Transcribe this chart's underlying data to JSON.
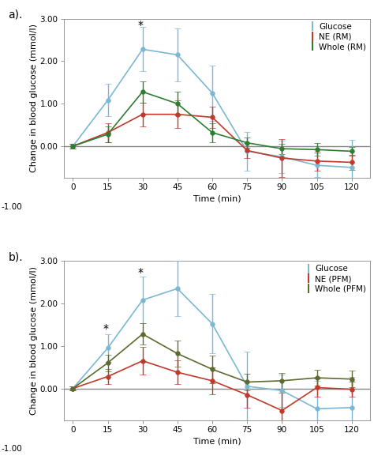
{
  "time": [
    0,
    15,
    30,
    45,
    60,
    75,
    90,
    105,
    120
  ],
  "panel_a": {
    "title": "a).",
    "glucose": {
      "y": [
        0.0,
        1.08,
        2.28,
        2.15,
        1.25,
        -0.12,
        -0.25,
        -0.45,
        -0.5
      ],
      "yerr": [
        0.05,
        0.38,
        0.52,
        0.62,
        0.65,
        0.45,
        0.38,
        0.28,
        0.65
      ],
      "color": "#7bb8d4",
      "label": "Glucose"
    },
    "ne_rm": {
      "y": [
        0.0,
        0.32,
        0.75,
        0.75,
        0.68,
        -0.1,
        -0.28,
        -0.35,
        -0.38
      ],
      "yerr": [
        0.05,
        0.22,
        0.28,
        0.32,
        0.25,
        0.18,
        0.45,
        0.22,
        0.18
      ],
      "color": "#c0392b",
      "label": "NE (RM)"
    },
    "whole_rm": {
      "y": [
        0.0,
        0.28,
        1.28,
        1.0,
        0.32,
        0.08,
        -0.06,
        -0.08,
        -0.12
      ],
      "yerr": [
        0.05,
        0.18,
        0.25,
        0.28,
        0.22,
        0.12,
        0.12,
        0.15,
        0.1
      ],
      "color": "#2e7d32",
      "label": "Whole (RM)"
    },
    "star_x": 30,
    "star_y": 2.72,
    "ylabel": "Change in blood glucose (mmol/l)",
    "xlabel": "Time (min)"
  },
  "panel_b": {
    "title": "b).",
    "glucose": {
      "y": [
        0.0,
        0.95,
        2.08,
        2.35,
        1.52,
        0.05,
        -0.05,
        -0.48,
        -0.45
      ],
      "yerr": [
        0.05,
        0.32,
        0.55,
        0.65,
        0.7,
        0.82,
        0.38,
        0.65,
        0.72
      ],
      "color": "#7bb8d4",
      "label": "Glucose"
    },
    "ne_pfm": {
      "y": [
        0.0,
        0.28,
        0.65,
        0.38,
        0.18,
        -0.15,
        -0.52,
        0.02,
        -0.02
      ],
      "yerr": [
        0.05,
        0.18,
        0.32,
        0.28,
        0.32,
        0.3,
        0.42,
        0.22,
        0.18
      ],
      "color": "#c0392b",
      "label": "NE (PFM)"
    },
    "whole_pfm": {
      "y": [
        0.0,
        0.6,
        1.28,
        0.82,
        0.45,
        0.15,
        0.18,
        0.25,
        0.22
      ],
      "yerr": [
        0.05,
        0.2,
        0.25,
        0.3,
        0.32,
        0.2,
        0.18,
        0.18,
        0.2
      ],
      "color": "#5d6b2e",
      "label": "Whole (PFM)"
    },
    "star_x_1": 15,
    "star_y_1": 1.27,
    "star_x_2": 30,
    "star_y_2": 2.6,
    "ylabel": "Change in blood glucose (mmol/l)",
    "xlabel": "Time (min)"
  },
  "ylim": [
    -0.75,
    3.0
  ],
  "yticks": [
    0.0,
    1.0,
    2.0,
    3.0
  ],
  "ytick_labels": [
    "0.00",
    "1.00",
    "2.00",
    "3.00"
  ],
  "y_neg1_label": "-1.00",
  "xticks": [
    0,
    15,
    30,
    45,
    60,
    75,
    90,
    105,
    120
  ],
  "background_color": "#ffffff",
  "legend_fontsize": 7.5,
  "axis_fontsize": 8,
  "tick_fontsize": 7.5,
  "marker_size": 4,
  "linewidth": 1.2,
  "capsize": 3,
  "elinewidth": 1.0
}
